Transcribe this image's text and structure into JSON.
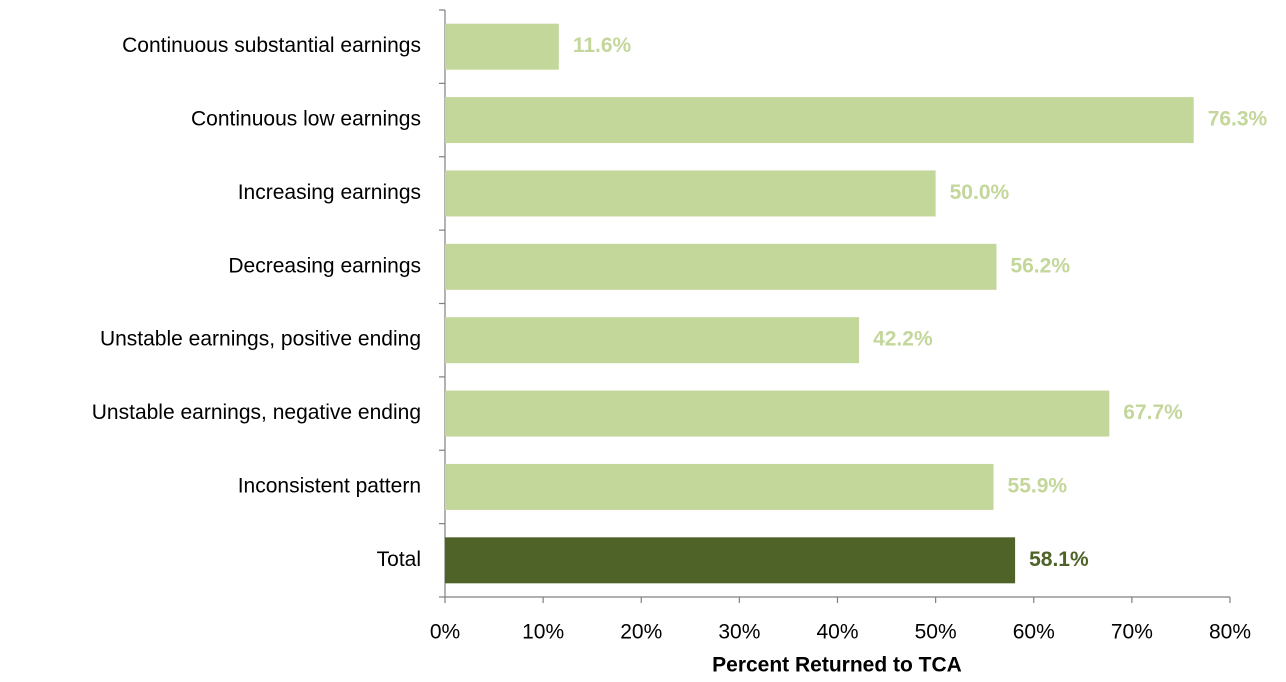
{
  "chart_data": {
    "type": "barh",
    "xlabel": "Percent Returned to TCA",
    "categories": [
      "Continuous substantial earnings",
      "Continuous low earnings",
      "Increasing earnings",
      "Decreasing earnings",
      "Unstable earnings, positive ending",
      "Unstable earnings, negative ending",
      "Inconsistent pattern",
      "Total"
    ],
    "values": [
      11.6,
      76.3,
      50.0,
      56.2,
      42.2,
      67.7,
      55.9,
      58.1
    ],
    "value_labels": [
      "11.6%",
      "76.3%",
      "50.0%",
      "56.2%",
      "42.2%",
      "67.7%",
      "55.9%",
      "58.1%"
    ],
    "colors": [
      "#c4d79b",
      "#c4d79b",
      "#c4d79b",
      "#c4d79b",
      "#c4d79b",
      "#c4d79b",
      "#c4d79b",
      "#4f6228"
    ],
    "xlim": [
      0,
      80
    ],
    "xticks": [
      {
        "value": 0,
        "label": "0%"
      },
      {
        "value": 10,
        "label": "10%"
      },
      {
        "value": 20,
        "label": "20%"
      },
      {
        "value": 30,
        "label": "30%"
      },
      {
        "value": 40,
        "label": "40%"
      },
      {
        "value": 50,
        "label": "50%"
      },
      {
        "value": 60,
        "label": "60%"
      },
      {
        "value": 70,
        "label": "70%"
      },
      {
        "value": 80,
        "label": "80%"
      }
    ],
    "grid": false
  }
}
